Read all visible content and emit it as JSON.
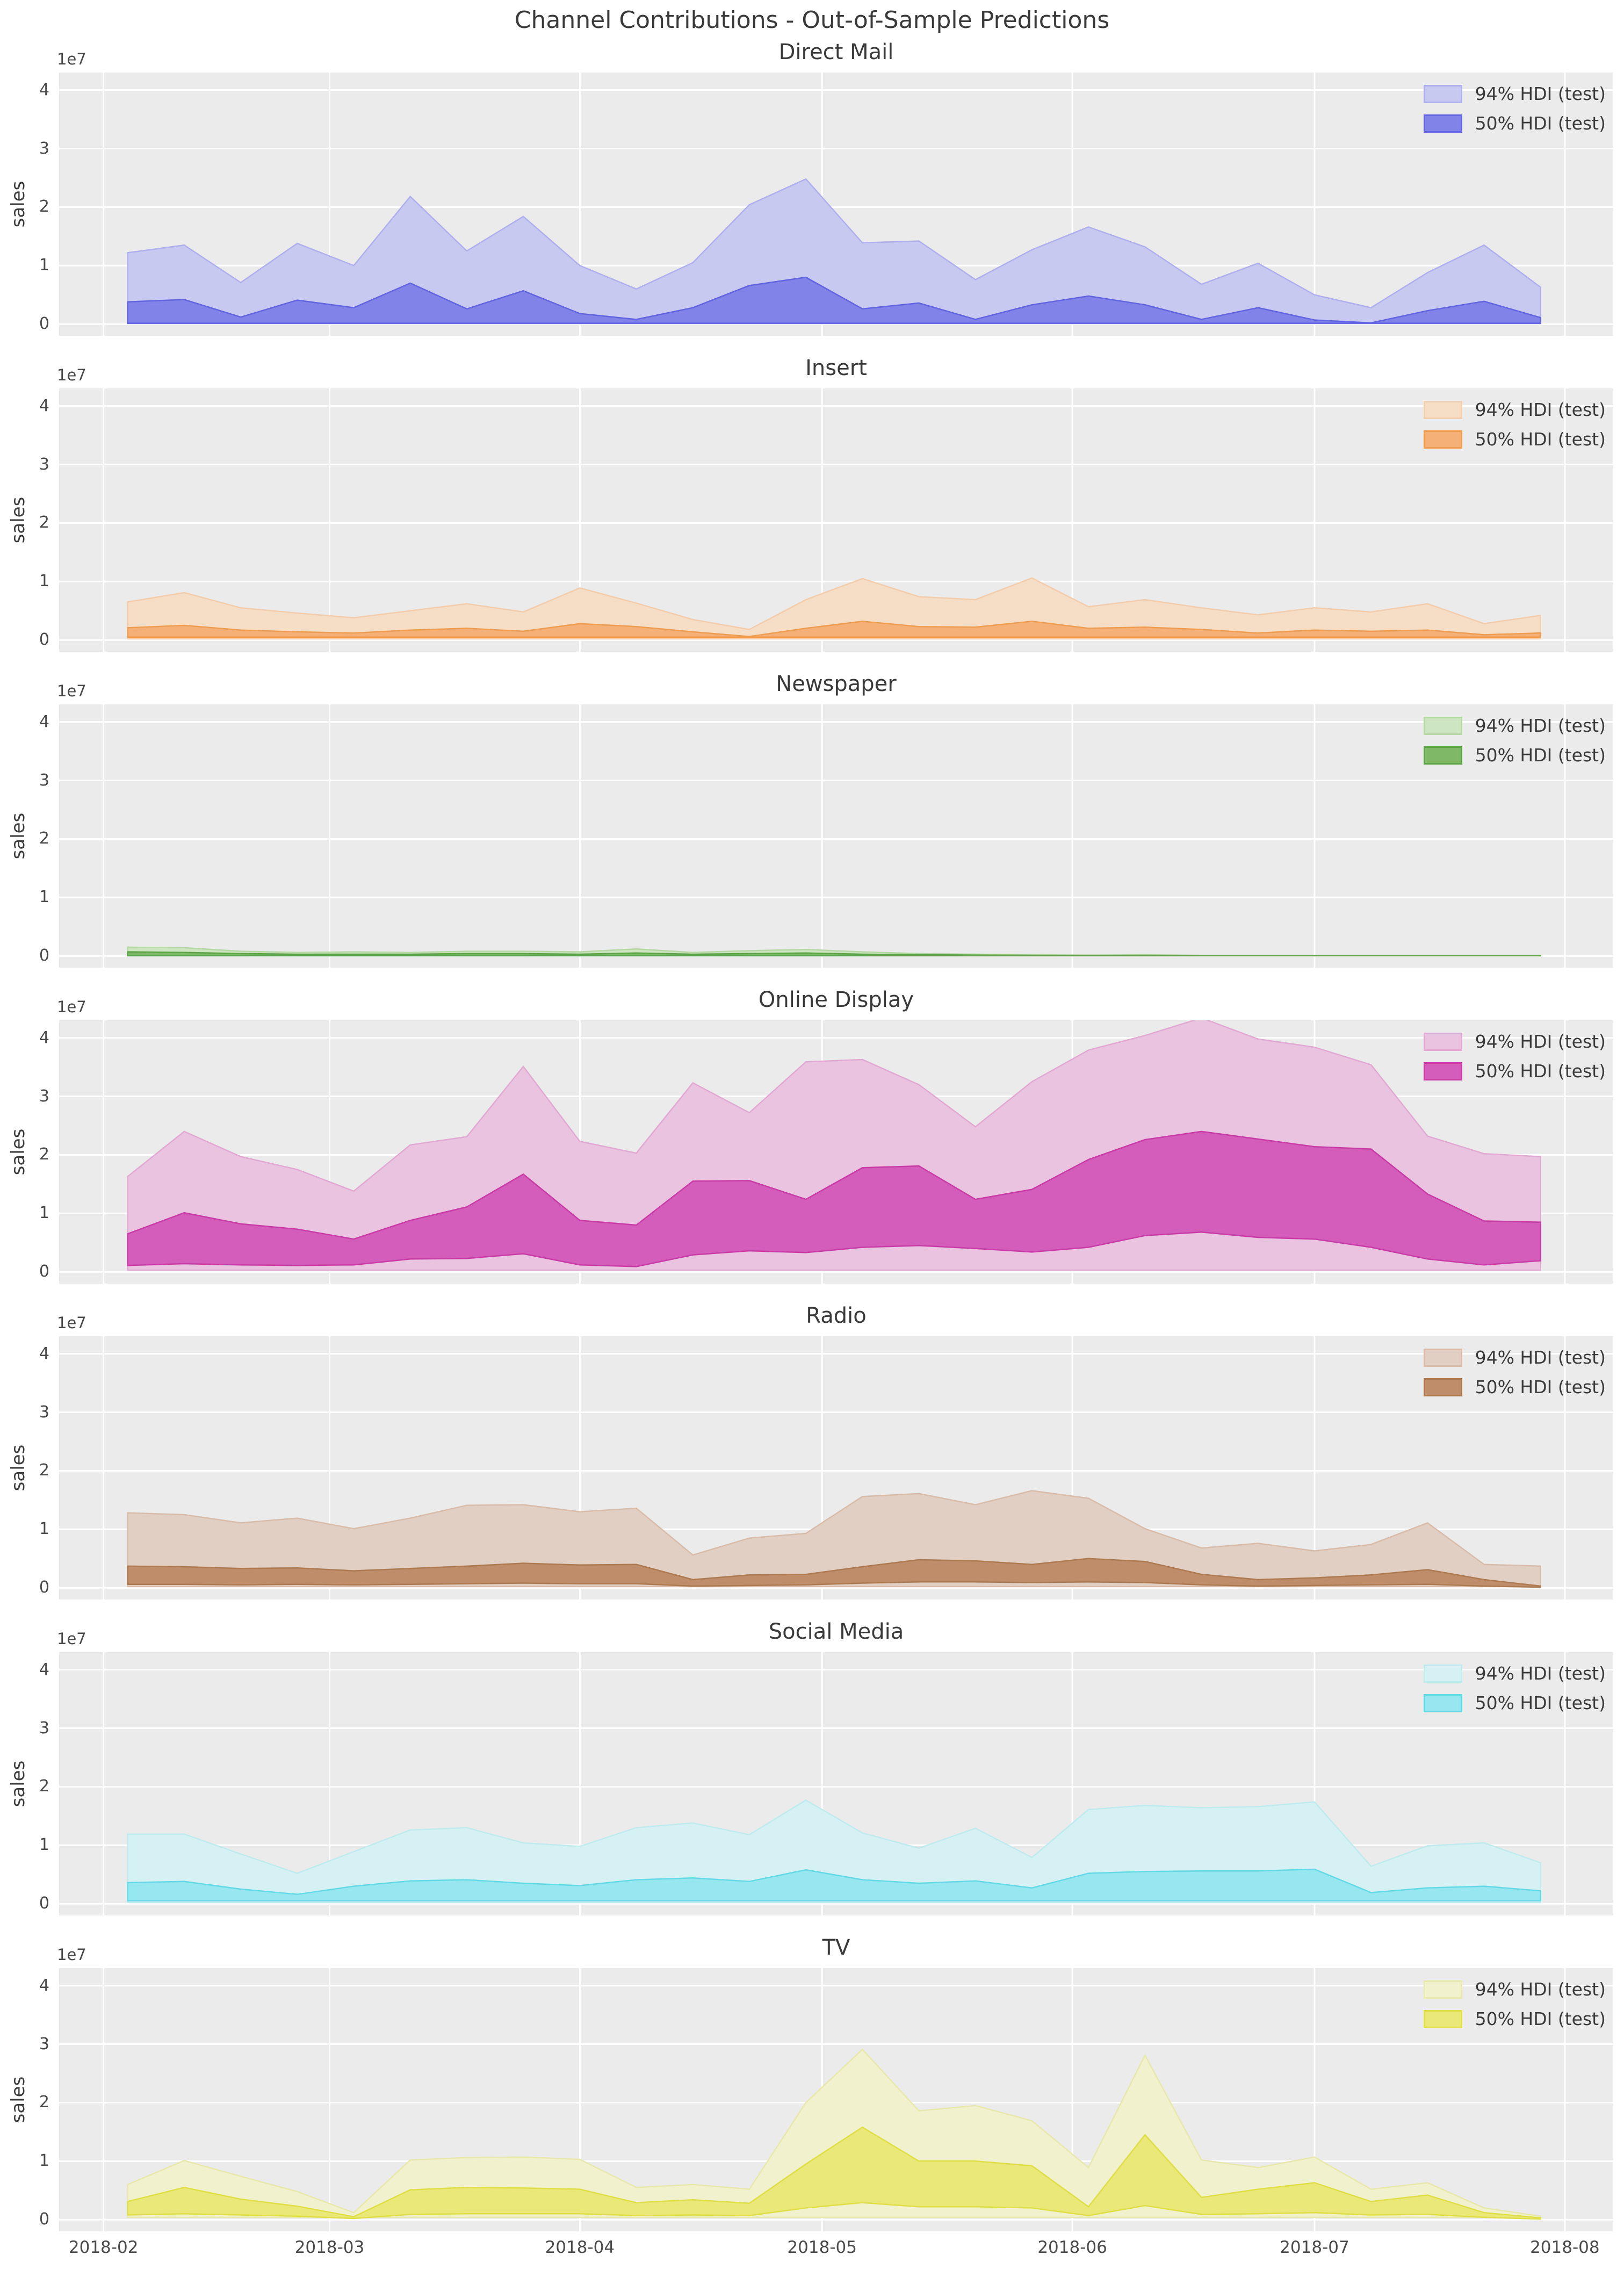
{
  "figure": {
    "title": "Channel Contributions - Out-of-Sample Predictions",
    "background": "#ffffff",
    "axes_background": "#ebebeb",
    "grid_color": "#ffffff",
    "text_color": "#3a3a3a"
  },
  "legend": {
    "labels": [
      "94% HDI (test)",
      "50% HDI (test)"
    ]
  },
  "y_axis": {
    "label": "sales",
    "offset_text": "1e7",
    "tick_labels": [
      "0",
      "1",
      "2",
      "3",
      "4"
    ],
    "tick_values": [
      0,
      1,
      2,
      3,
      4
    ],
    "ylim": [
      -0.2,
      4.3
    ],
    "grid": true
  },
  "x_axis": {
    "tick_labels": [
      "2018-02",
      "2018-03",
      "2018-04",
      "2018-05",
      "2018-06",
      "2018-07",
      "2018-08"
    ],
    "month_day_offsets": [
      5.5,
      33.5,
      64.5,
      94.5,
      125.5,
      155.5,
      186.5
    ],
    "domain_days": 192.5,
    "data_start_day": 8.5,
    "data_start_date": "2018-02-04",
    "data_step_days": 7,
    "n_points": 26,
    "grid": true
  },
  "chart_data": [
    {
      "type": "area",
      "title": "Direct Mail",
      "y_unit": "1e7",
      "colors": {
        "hdi94_fill": "#c8c9f1",
        "hdi94_edge": "#aeafec",
        "hdi50_fill": "#8183e8",
        "hdi50_edge": "#6163df"
      },
      "hdi94_upper": [
        1.22,
        1.35,
        0.71,
        1.38,
        1.0,
        2.18,
        1.25,
        1.84,
        1.0,
        0.6,
        1.05,
        2.04,
        2.48,
        1.39,
        1.42,
        0.76,
        1.27,
        1.66,
        1.32,
        0.68,
        1.04,
        0.5,
        0.28,
        0.88,
        1.35,
        0.63
      ],
      "hdi94_lower": 0.01,
      "hdi50_upper": [
        0.38,
        0.42,
        0.12,
        0.41,
        0.28,
        0.7,
        0.26,
        0.57,
        0.18,
        0.08,
        0.28,
        0.66,
        0.8,
        0.26,
        0.36,
        0.08,
        0.33,
        0.48,
        0.33,
        0.08,
        0.28,
        0.07,
        0.02,
        0.23,
        0.39,
        0.11
      ],
      "hdi50_lower": 0.015
    },
    {
      "type": "area",
      "title": "Insert",
      "y_unit": "1e7",
      "colors": {
        "hdi94_fill": "#f6dec6",
        "hdi94_edge": "#f2ccab",
        "hdi50_fill": "#f4b077",
        "hdi50_edge": "#ee9c50"
      },
      "hdi94_upper": [
        0.65,
        0.81,
        0.55,
        0.46,
        0.38,
        0.5,
        0.62,
        0.48,
        0.89,
        0.63,
        0.35,
        0.18,
        0.69,
        1.05,
        0.74,
        0.69,
        1.06,
        0.57,
        0.69,
        0.55,
        0.43,
        0.55,
        0.48,
        0.62,
        0.28,
        0.42
      ],
      "hdi94_lower": 0.02,
      "hdi50_upper": [
        0.21,
        0.25,
        0.17,
        0.14,
        0.12,
        0.17,
        0.2,
        0.15,
        0.28,
        0.23,
        0.14,
        0.06,
        0.2,
        0.32,
        0.23,
        0.22,
        0.32,
        0.2,
        0.22,
        0.18,
        0.12,
        0.17,
        0.15,
        0.17,
        0.09,
        0.12
      ],
      "hdi50_lower": 0.05
    },
    {
      "type": "area",
      "title": "Newspaper",
      "y_unit": "1e7",
      "colors": {
        "hdi94_fill": "#cee5c1",
        "hdi94_edge": "#b5d7a3",
        "hdi50_fill": "#7fb968",
        "hdi50_edge": "#5ba345"
      },
      "hdi94_upper": [
        0.15,
        0.14,
        0.08,
        0.06,
        0.07,
        0.06,
        0.08,
        0.08,
        0.07,
        0.12,
        0.06,
        0.09,
        0.11,
        0.07,
        0.04,
        0.03,
        0.02,
        0.015,
        0.02,
        0.01,
        0.01,
        0.01,
        0.01,
        0.01,
        0.01,
        0.01
      ],
      "hdi94_lower": 0.002,
      "hdi50_upper": [
        0.07,
        0.06,
        0.04,
        0.03,
        0.03,
        0.03,
        0.04,
        0.04,
        0.03,
        0.05,
        0.03,
        0.04,
        0.05,
        0.03,
        0.02,
        0.015,
        0.01,
        0.008,
        0.01,
        0.006,
        0.006,
        0.006,
        0.006,
        0.006,
        0.006,
        0.006
      ],
      "hdi50_lower": 0.004
    },
    {
      "type": "area",
      "title": "Online Display",
      "y_unit": "1e7",
      "colors": {
        "hdi94_fill": "#eac3e1",
        "hdi94_edge": "#e0a8d2",
        "hdi50_fill": "#d45cba",
        "hdi50_edge": "#c83ba6"
      },
      "hdi94_upper": [
        1.63,
        2.4,
        1.97,
        1.75,
        1.38,
        2.17,
        2.31,
        3.51,
        2.23,
        2.03,
        3.23,
        2.72,
        3.59,
        3.63,
        3.2,
        2.48,
        3.25,
        3.79,
        4.04,
        4.34,
        3.98,
        3.84,
        3.54,
        2.32,
        2.02,
        1.97
      ],
      "hdi94_lower": 0.03,
      "hdi50_upper": [
        0.65,
        1.01,
        0.82,
        0.73,
        0.56,
        0.88,
        1.11,
        1.67,
        0.88,
        0.8,
        1.55,
        1.56,
        1.24,
        1.78,
        1.81,
        1.24,
        1.41,
        1.92,
        2.26,
        2.4,
        2.27,
        2.14,
        2.1,
        1.33,
        0.87,
        0.85
      ],
      "hdi50_lower": [
        0.11,
        0.14,
        0.12,
        0.11,
        0.12,
        0.22,
        0.23,
        0.31,
        0.12,
        0.09,
        0.29,
        0.36,
        0.33,
        0.42,
        0.45,
        0.4,
        0.34,
        0.42,
        0.62,
        0.68,
        0.59,
        0.56,
        0.42,
        0.22,
        0.12,
        0.19
      ]
    },
    {
      "type": "area",
      "title": "Radio",
      "y_unit": "1e7",
      "colors": {
        "hdi94_fill": "#e2cfc3",
        "hdi94_edge": "#d8bca9",
        "hdi50_fill": "#c08d6b",
        "hdi50_edge": "#ad7950"
      },
      "hdi94_upper": [
        1.28,
        1.25,
        1.11,
        1.19,
        1.01,
        1.19,
        1.41,
        1.42,
        1.3,
        1.36,
        0.56,
        0.85,
        0.93,
        1.56,
        1.61,
        1.42,
        1.66,
        1.53,
        1.01,
        0.68,
        0.76,
        0.63,
        0.74,
        1.11,
        0.4,
        0.37
      ],
      "hdi94_lower": 0.02,
      "hdi50_upper": [
        0.37,
        0.36,
        0.33,
        0.34,
        0.29,
        0.33,
        0.37,
        0.42,
        0.39,
        0.4,
        0.14,
        0.22,
        0.23,
        0.36,
        0.48,
        0.46,
        0.4,
        0.5,
        0.45,
        0.23,
        0.14,
        0.17,
        0.22,
        0.31,
        0.14,
        0.03
      ],
      "hdi50_lower": [
        0.06,
        0.06,
        0.05,
        0.06,
        0.05,
        0.06,
        0.07,
        0.08,
        0.07,
        0.07,
        0.03,
        0.04,
        0.05,
        0.08,
        0.1,
        0.1,
        0.09,
        0.1,
        0.09,
        0.05,
        0.03,
        0.04,
        0.05,
        0.06,
        0.03,
        0.01
      ]
    },
    {
      "type": "area",
      "title": "Social Media",
      "y_unit": "1e7",
      "colors": {
        "hdi94_fill": "#d6f1f4",
        "hdi94_edge": "#bfeaee",
        "hdi50_fill": "#96e7f0",
        "hdi50_edge": "#63d9e6"
      },
      "hdi94_upper": [
        1.19,
        1.19,
        0.85,
        0.52,
        0.89,
        1.26,
        1.3,
        1.04,
        0.98,
        1.3,
        1.38,
        1.18,
        1.77,
        1.21,
        0.95,
        1.29,
        0.79,
        1.61,
        1.68,
        1.64,
        1.66,
        1.74,
        0.64,
        0.99,
        1.04,
        0.7
      ],
      "hdi94_lower": 0.02,
      "hdi50_upper": [
        0.36,
        0.38,
        0.25,
        0.16,
        0.3,
        0.39,
        0.41,
        0.35,
        0.31,
        0.41,
        0.44,
        0.38,
        0.58,
        0.41,
        0.35,
        0.39,
        0.27,
        0.52,
        0.55,
        0.56,
        0.56,
        0.59,
        0.19,
        0.27,
        0.3,
        0.22
      ],
      "hdi50_lower": 0.05
    },
    {
      "type": "area",
      "title": "TV",
      "y_unit": "1e7",
      "colors": {
        "hdi94_fill": "#f1f1cd",
        "hdi94_edge": "#e8e8ad",
        "hdi50_fill": "#e9e878",
        "hdi50_edge": "#dfde45"
      },
      "hdi94_upper": [
        0.6,
        1.01,
        0.74,
        0.48,
        0.12,
        1.02,
        1.06,
        1.07,
        1.03,
        0.55,
        0.6,
        0.52,
        2.0,
        2.91,
        1.86,
        1.95,
        1.69,
        0.89,
        2.81,
        1.02,
        0.89,
        1.07,
        0.52,
        0.63,
        0.2,
        0.06
      ],
      "hdi94_lower": 0.04,
      "hdi50_upper": [
        0.31,
        0.55,
        0.35,
        0.23,
        0.05,
        0.51,
        0.55,
        0.54,
        0.52,
        0.29,
        0.34,
        0.28,
        0.95,
        1.58,
        1.0,
        1.0,
        0.92,
        0.22,
        1.45,
        0.38,
        0.52,
        0.63,
        0.31,
        0.42,
        0.12,
        0.03
      ],
      "hdi50_lower": [
        0.08,
        0.1,
        0.08,
        0.06,
        0.02,
        0.09,
        0.1,
        0.1,
        0.1,
        0.07,
        0.08,
        0.07,
        0.2,
        0.29,
        0.22,
        0.22,
        0.2,
        0.07,
        0.24,
        0.09,
        0.1,
        0.12,
        0.08,
        0.09,
        0.04,
        0.01
      ]
    }
  ]
}
